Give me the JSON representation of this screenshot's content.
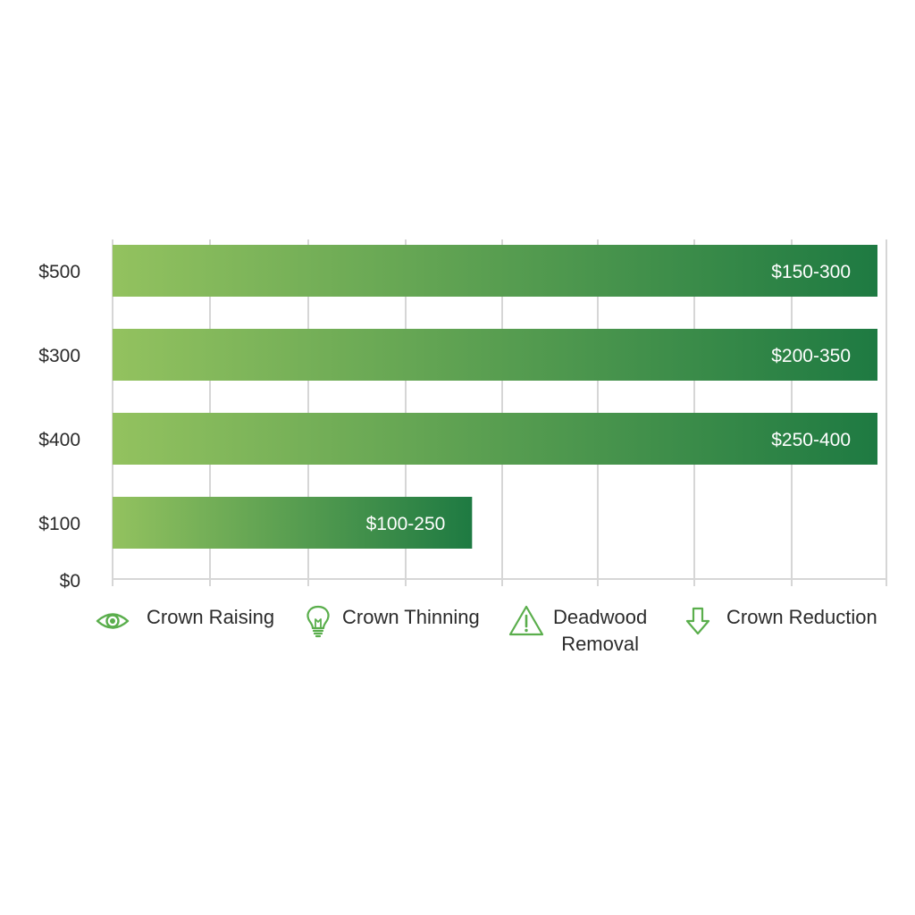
{
  "colors": {
    "bar_start": "#93c25f",
    "bar_end": "#1e7a42",
    "grid": "#d6d6d6",
    "icon": "#5aae4c",
    "text": "#2b2b2b",
    "bar_label": "#ffffff"
  },
  "chart_data": {
    "type": "bar",
    "orientation": "horizontal",
    "categories": [
      "$500",
      "$300",
      "$400",
      "$100"
    ],
    "baseline_label": "$0",
    "values": [
      1,
      1,
      1,
      0.47
    ],
    "value_labels": [
      "$150-300",
      "$200-350",
      "$250-400",
      "$100-250"
    ],
    "xlim": [
      0,
      1
    ],
    "grid": true,
    "legend_position": "bottom"
  },
  "legend": [
    {
      "label": "Crown Raising",
      "icon": "eye-icon"
    },
    {
      "label": "Crown Thinning",
      "icon": "lightbulb-icon"
    },
    {
      "label": "Deadwood\nRemoval",
      "icon": "warning-icon"
    },
    {
      "label": "Crown Reduction",
      "icon": "down-arrow-icon"
    }
  ]
}
